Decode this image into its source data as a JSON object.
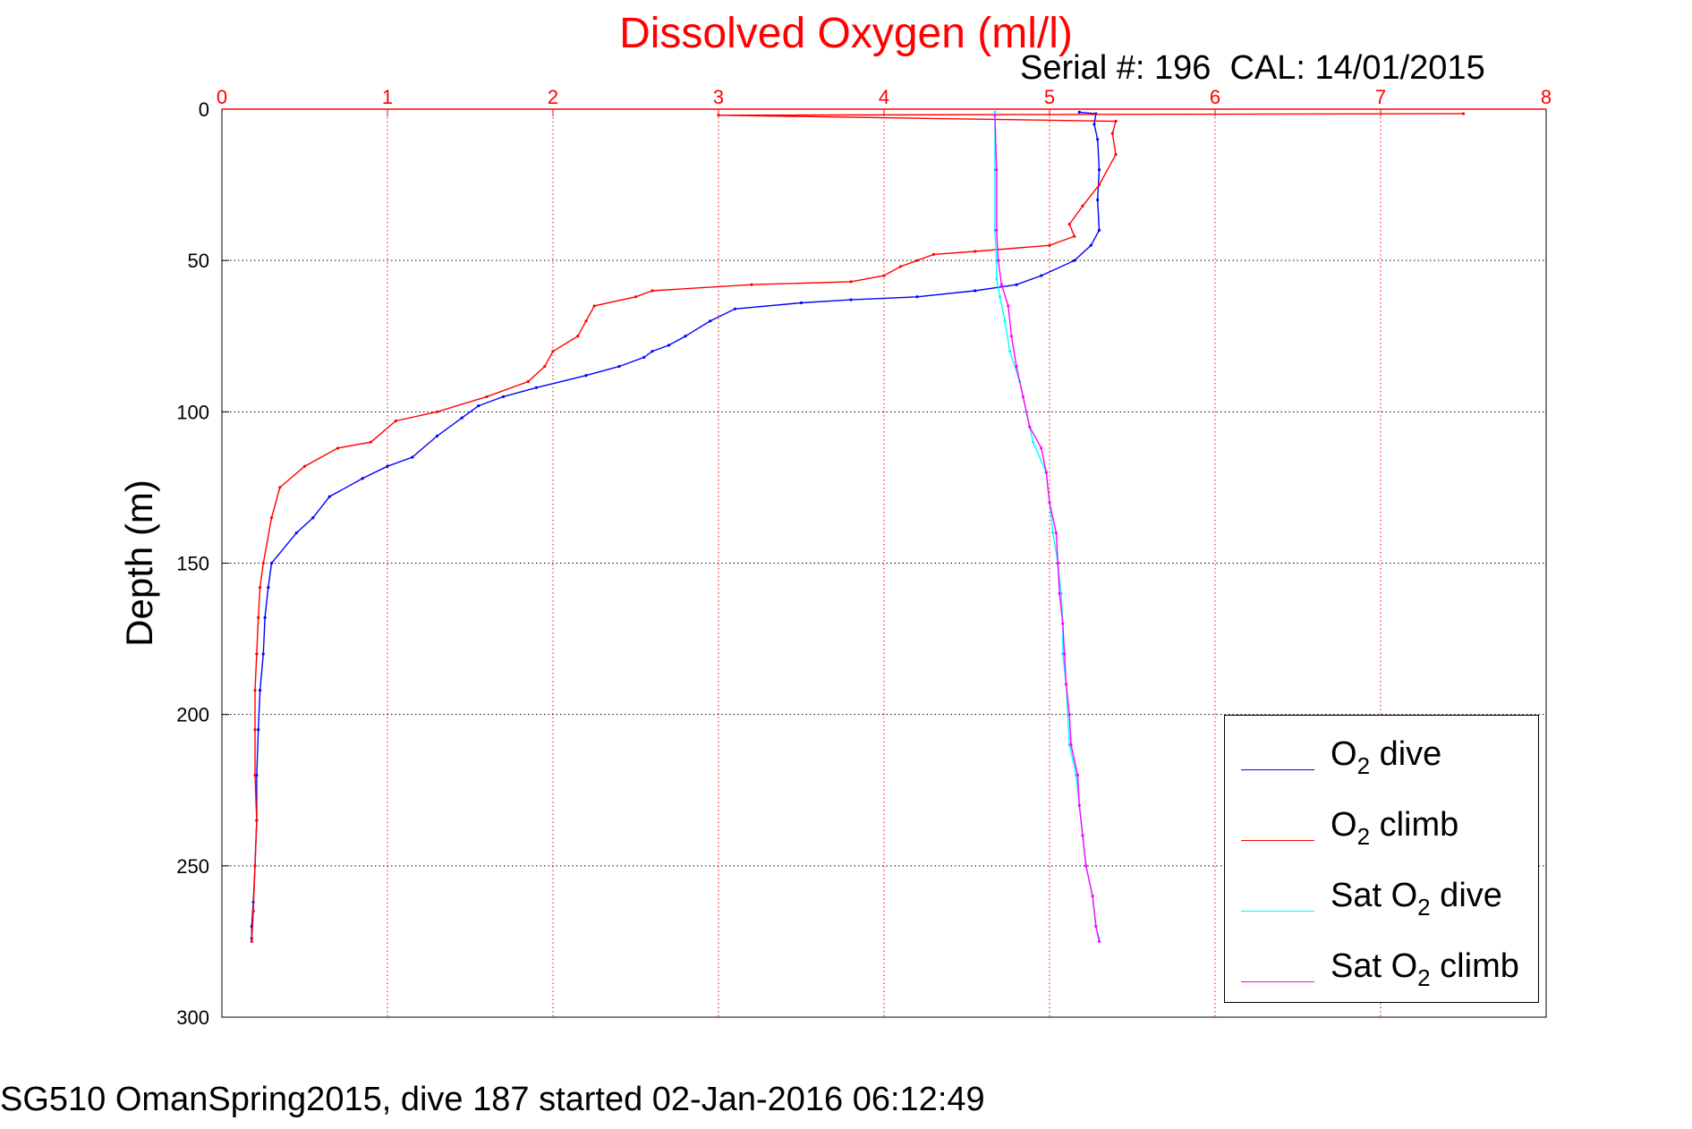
{
  "chart_data": {
    "type": "line",
    "title": "Dissolved Oxygen (ml/l)",
    "subtitle": "Serial #: 196  CAL: 14/01/2015",
    "xlabel": "",
    "ylabel": "Depth (m)",
    "caption": "SG510 OmanSpring2015, dive 187 started 02-Jan-2016 06:12:49",
    "xlim": [
      0,
      8
    ],
    "ylim": [
      0,
      300
    ],
    "y_reversed": true,
    "x_ticks": [
      "0",
      "1",
      "2",
      "3",
      "4",
      "5",
      "6",
      "7",
      "8"
    ],
    "y_ticks": [
      "0",
      "50",
      "100",
      "150",
      "200",
      "250",
      "300"
    ],
    "grid": true,
    "legend_position": "bottom-right",
    "colors": {
      "axis_x": "#ff0000",
      "grid_x": "#ff0000",
      "grid_y": "#000000"
    },
    "series": [
      {
        "name": "O2 dive",
        "label_base": "O",
        "label_sub": "2",
        "label_rest": " dive",
        "color": "#0000ff",
        "points": [
          [
            5.18,
            1
          ],
          [
            5.28,
            1.5
          ],
          [
            5.27,
            5
          ],
          [
            5.29,
            10
          ],
          [
            5.3,
            20
          ],
          [
            5.29,
            30
          ],
          [
            5.3,
            40
          ],
          [
            5.25,
            45
          ],
          [
            5.15,
            50
          ],
          [
            4.95,
            55
          ],
          [
            4.8,
            58
          ],
          [
            4.55,
            60
          ],
          [
            4.2,
            62
          ],
          [
            3.8,
            63
          ],
          [
            3.5,
            64
          ],
          [
            3.1,
            66
          ],
          [
            2.95,
            70
          ],
          [
            2.8,
            75
          ],
          [
            2.7,
            78
          ],
          [
            2.6,
            80
          ],
          [
            2.55,
            82
          ],
          [
            2.4,
            85
          ],
          [
            2.2,
            88
          ],
          [
            1.9,
            92
          ],
          [
            1.7,
            95
          ],
          [
            1.55,
            98
          ],
          [
            1.45,
            102
          ],
          [
            1.3,
            108
          ],
          [
            1.15,
            115
          ],
          [
            1.0,
            118
          ],
          [
            0.85,
            122
          ],
          [
            0.65,
            128
          ],
          [
            0.55,
            135
          ],
          [
            0.45,
            140
          ],
          [
            0.3,
            150
          ],
          [
            0.28,
            158
          ],
          [
            0.26,
            168
          ],
          [
            0.25,
            180
          ],
          [
            0.23,
            192
          ],
          [
            0.22,
            205
          ],
          [
            0.21,
            220
          ],
          [
            0.21,
            235
          ],
          [
            0.2,
            250
          ],
          [
            0.19,
            262
          ],
          [
            0.18,
            270
          ],
          [
            0.18,
            274
          ]
        ]
      },
      {
        "name": "O2 climb",
        "label_base": "O",
        "label_sub": "2",
        "label_rest": " climb",
        "color": "#ff0000",
        "points": [
          [
            0.18,
            275
          ],
          [
            0.19,
            265
          ],
          [
            0.2,
            250
          ],
          [
            0.21,
            235
          ],
          [
            0.2,
            220
          ],
          [
            0.2,
            205
          ],
          [
            0.2,
            192
          ],
          [
            0.21,
            180
          ],
          [
            0.22,
            168
          ],
          [
            0.23,
            158
          ],
          [
            0.25,
            150
          ],
          [
            0.3,
            135
          ],
          [
            0.35,
            125
          ],
          [
            0.5,
            118
          ],
          [
            0.7,
            112
          ],
          [
            0.9,
            110
          ],
          [
            1.05,
            103
          ],
          [
            1.3,
            100
          ],
          [
            1.6,
            95
          ],
          [
            1.85,
            90
          ],
          [
            1.95,
            85
          ],
          [
            2.0,
            80
          ],
          [
            2.15,
            75
          ],
          [
            2.2,
            70
          ],
          [
            2.25,
            65
          ],
          [
            2.5,
            62
          ],
          [
            2.6,
            60
          ],
          [
            3.2,
            58
          ],
          [
            3.8,
            57
          ],
          [
            4.0,
            55
          ],
          [
            4.1,
            52
          ],
          [
            4.2,
            50
          ],
          [
            4.3,
            48
          ],
          [
            4.55,
            47
          ],
          [
            5.0,
            45
          ],
          [
            5.15,
            42
          ],
          [
            5.12,
            38
          ],
          [
            5.2,
            32
          ],
          [
            5.3,
            25
          ],
          [
            5.4,
            15
          ],
          [
            5.38,
            8
          ],
          [
            5.4,
            4
          ],
          [
            3.0,
            2
          ],
          [
            7.5,
            1.5
          ]
        ]
      },
      {
        "name": "Sat O2 dive",
        "label_base": "Sat O",
        "label_sub": "2",
        "label_rest": " dive",
        "color": "#00ffff",
        "points": [
          [
            4.67,
            1
          ],
          [
            4.67,
            20
          ],
          [
            4.67,
            40
          ],
          [
            4.68,
            50
          ],
          [
            4.68,
            56
          ],
          [
            4.7,
            62
          ],
          [
            4.73,
            70
          ],
          [
            4.76,
            80
          ],
          [
            4.82,
            90
          ],
          [
            4.86,
            100
          ],
          [
            4.9,
            110
          ],
          [
            4.98,
            120
          ],
          [
            5.0,
            130
          ],
          [
            5.02,
            140
          ],
          [
            5.05,
            150
          ],
          [
            5.07,
            160
          ],
          [
            5.08,
            170
          ],
          [
            5.08,
            180
          ],
          [
            5.1,
            190
          ],
          [
            5.11,
            200
          ],
          [
            5.12,
            210
          ],
          [
            5.16,
            220
          ],
          [
            5.18,
            230
          ],
          [
            5.2,
            240
          ],
          [
            5.22,
            250
          ],
          [
            5.26,
            260
          ],
          [
            5.28,
            270
          ],
          [
            5.3,
            274
          ]
        ]
      },
      {
        "name": "Sat O2 climb",
        "label_base": "Sat O",
        "label_sub": "2",
        "label_rest": " climb",
        "color": "#ff00ff",
        "points": [
          [
            5.3,
            275
          ],
          [
            5.28,
            270
          ],
          [
            5.26,
            260
          ],
          [
            5.22,
            250
          ],
          [
            5.2,
            240
          ],
          [
            5.18,
            230
          ],
          [
            5.17,
            220
          ],
          [
            5.13,
            210
          ],
          [
            5.12,
            200
          ],
          [
            5.1,
            190
          ],
          [
            5.09,
            180
          ],
          [
            5.08,
            170
          ],
          [
            5.06,
            160
          ],
          [
            5.05,
            150
          ],
          [
            5.04,
            140
          ],
          [
            5.0,
            130
          ],
          [
            4.98,
            120
          ],
          [
            4.95,
            112
          ],
          [
            4.88,
            105
          ],
          [
            4.84,
            95
          ],
          [
            4.8,
            85
          ],
          [
            4.77,
            75
          ],
          [
            4.75,
            65
          ],
          [
            4.71,
            58
          ],
          [
            4.69,
            50
          ],
          [
            4.68,
            40
          ],
          [
            4.68,
            20
          ],
          [
            4.67,
            2
          ]
        ]
      }
    ]
  }
}
